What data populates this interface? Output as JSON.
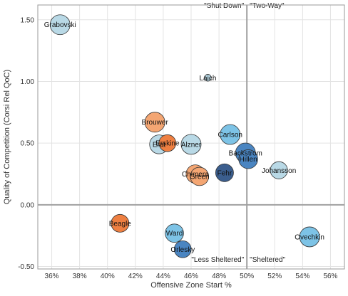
{
  "colors": {
    "background": "#ffffff",
    "frame": "#9a9a9a",
    "grid": "#e3e3e3",
    "reference_line": "#a0a0a0",
    "circle_stroke": "#333333"
  },
  "chart_data": {
    "type": "scatter",
    "title": "",
    "xlabel": "Offensive Zone Start %",
    "ylabel": "Quality of Competition (Corsi Rel QoC)",
    "xlim": [
      35,
      57
    ],
    "ylim": [
      -0.52,
      1.62
    ],
    "x_ticks": [
      36,
      38,
      40,
      42,
      44,
      46,
      48,
      50,
      52,
      54,
      56
    ],
    "x_tick_labels": [
      "36%",
      "38%",
      "40%",
      "42%",
      "44%",
      "46%",
      "48%",
      "50%",
      "52%",
      "54%",
      "56%"
    ],
    "y_ticks": [
      -0.5,
      0,
      0.5,
      1,
      1.5
    ],
    "y_tick_labels": [
      "-0.50",
      "0.00",
      "0.50",
      "1.00",
      "1.50"
    ],
    "grid": true,
    "reference_lines": {
      "x": 50,
      "y": 0
    },
    "quadrant_labels": [
      {
        "text": "\"Shut Down\"",
        "position": "top-left-of-center"
      },
      {
        "text": "\"Two-Way\"",
        "position": "top-right-of-center"
      },
      {
        "text": "\"Less Sheltered\"",
        "position": "bottom-left-of-center"
      },
      {
        "text": "\"Sheltered\"",
        "position": "bottom-right-of-center"
      }
    ],
    "points": [
      {
        "label": "Grabovski",
        "x": 36.6,
        "y": 1.46,
        "size": 1.0,
        "color": "#b9d9e6"
      },
      {
        "label": "Laich",
        "x": 47.2,
        "y": 1.03,
        "size": 0.12,
        "color": "#b9d9e6"
      },
      {
        "label": "Brouwer",
        "x": 43.4,
        "y": 0.67,
        "size": 1.0,
        "color": "#f4a673"
      },
      {
        "label": "Carlson",
        "x": 48.8,
        "y": 0.57,
        "size": 1.0,
        "color": "#7dc3e6"
      },
      {
        "label": "Erat",
        "x": 43.7,
        "y": 0.49,
        "size": 0.9,
        "color": "#b9d9e6"
      },
      {
        "label": "Erskine",
        "x": 44.3,
        "y": 0.5,
        "size": 0.72,
        "color": "#ee7f41"
      },
      {
        "label": "Alzner",
        "x": 46.0,
        "y": 0.49,
        "size": 1.0,
        "color": "#b9d9e6"
      },
      {
        "label": "Backstrom",
        "x": 49.9,
        "y": 0.42,
        "size": 1.0,
        "color": "#4a85c1"
      },
      {
        "label": "Hillen",
        "x": 50.1,
        "y": 0.37,
        "size": 0.9,
        "color": "#4a85c1"
      },
      {
        "label": "Johansson",
        "x": 52.3,
        "y": 0.28,
        "size": 0.75,
        "color": "#b9d9e6"
      },
      {
        "label": "Fehr",
        "x": 48.4,
        "y": 0.26,
        "size": 0.8,
        "color": "#3b5e8e"
      },
      {
        "label": "Chimera",
        "x": 46.3,
        "y": 0.25,
        "size": 0.85,
        "color": "#f4a673"
      },
      {
        "label": "Green",
        "x": 46.6,
        "y": 0.23,
        "size": 0.85,
        "color": "#f4a673"
      },
      {
        "label": "Beagle",
        "x": 40.9,
        "y": -0.15,
        "size": 0.8,
        "color": "#ee7f41"
      },
      {
        "label": "Ward",
        "x": 44.8,
        "y": -0.23,
        "size": 0.85,
        "color": "#7dc3e6"
      },
      {
        "label": "Orlesky",
        "x": 45.4,
        "y": -0.36,
        "size": 0.72,
        "color": "#4a85c1"
      },
      {
        "label": "Ovechkin",
        "x": 54.5,
        "y": -0.26,
        "size": 1.0,
        "color": "#7dc3e6"
      }
    ]
  }
}
